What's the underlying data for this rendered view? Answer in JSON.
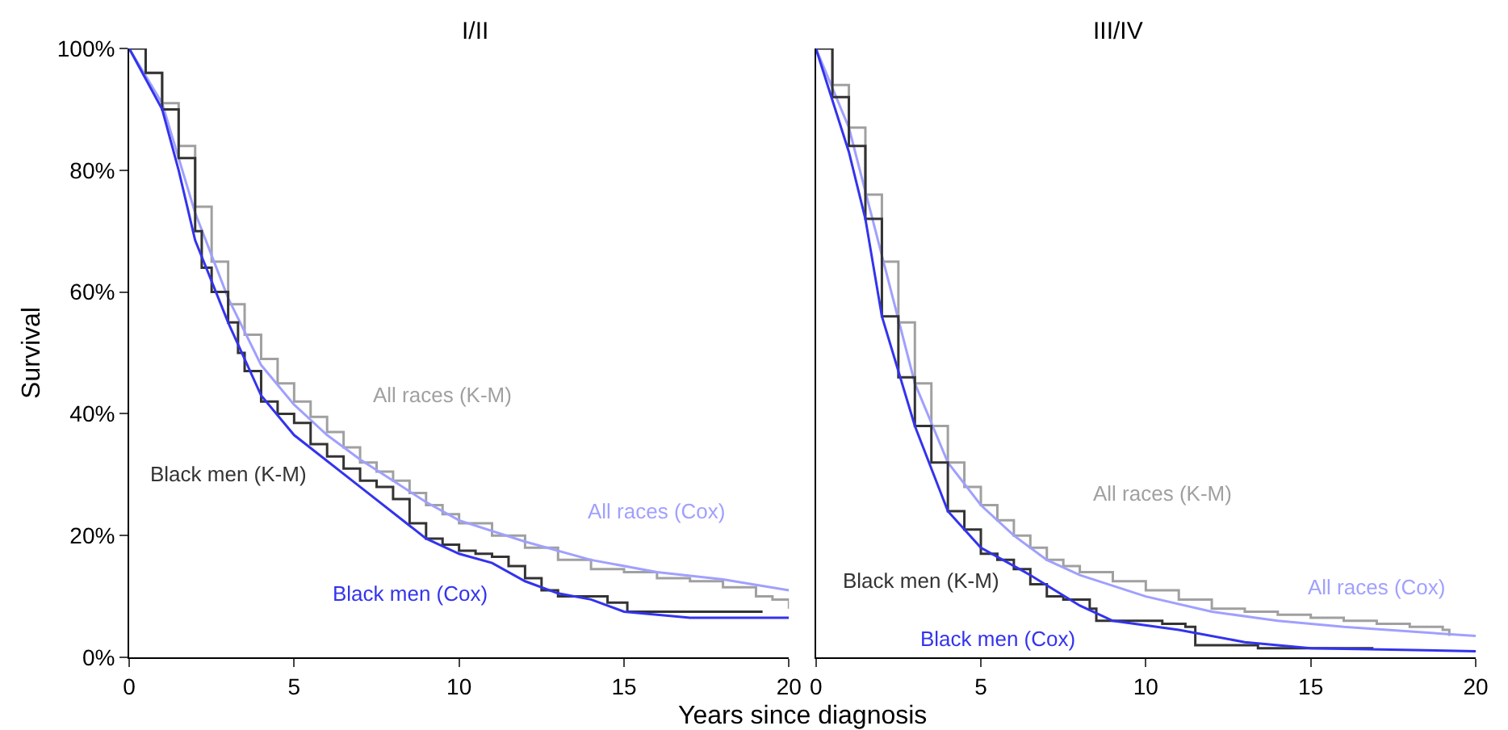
{
  "chart_data": [
    {
      "type": "line",
      "title": "I/II",
      "xlabel": "Years since diagnosis",
      "ylabel": "Survival",
      "xlim": [
        0,
        20
      ],
      "xticks": [
        0,
        5,
        10,
        15,
        20
      ],
      "ylim": [
        0,
        100
      ],
      "yticks": [
        {
          "value": 0,
          "label": "0%"
        },
        {
          "value": 20,
          "label": "20%"
        },
        {
          "value": 40,
          "label": "40%"
        },
        {
          "value": 60,
          "label": "60%"
        },
        {
          "value": 80,
          "label": "80%"
        },
        {
          "value": 100,
          "label": "100%"
        }
      ],
      "marker": "none",
      "series": [
        {
          "name": "All races (K-M)",
          "type": "step",
          "color": "#a0a0a0",
          "x": [
            0,
            0.5,
            1,
            1.5,
            2,
            2.5,
            3,
            3.5,
            4,
            4.5,
            5,
            5.5,
            6,
            6.5,
            7,
            7.5,
            8,
            8.5,
            9,
            9.5,
            10,
            11,
            12,
            13,
            14,
            15,
            16,
            17,
            18,
            19,
            19.5,
            20
          ],
          "values": [
            100,
            96,
            91,
            84,
            74,
            65,
            58,
            53,
            49,
            45,
            42,
            39.5,
            37,
            34.5,
            32,
            30.5,
            29,
            27,
            25,
            23.5,
            22,
            20,
            18,
            16,
            14.5,
            14,
            13,
            12.5,
            11.5,
            10,
            9.5,
            8
          ]
        },
        {
          "name": "All races (Cox)",
          "color": "#a0a0ff",
          "x": [
            0,
            1,
            2,
            3,
            4,
            5,
            6,
            7,
            8,
            9,
            10,
            12,
            14,
            16,
            18,
            20
          ],
          "values": [
            100,
            91,
            73,
            59,
            48,
            41.5,
            36.5,
            32.5,
            29,
            25.5,
            22.5,
            19,
            16,
            14,
            12.8,
            11
          ]
        },
        {
          "name": "Black men (K-M)",
          "type": "step",
          "color": "#333333",
          "x": [
            0,
            0.5,
            1,
            1.5,
            2,
            2.2,
            2.5,
            3,
            3.3,
            3.5,
            4,
            4.5,
            5,
            5.5,
            6,
            6.5,
            7,
            7.5,
            8,
            8.5,
            9,
            9.5,
            10,
            10.5,
            11,
            11.5,
            12,
            12.5,
            13,
            14.5,
            15.1,
            19.2
          ],
          "values": [
            100,
            96,
            90,
            82,
            70,
            64,
            60,
            55,
            50,
            47,
            42,
            40,
            38.5,
            35,
            33,
            31,
            29,
            28,
            26,
            22,
            19.5,
            18.5,
            17.5,
            17,
            16.5,
            15,
            13,
            11,
            10,
            9,
            7.5,
            7.5
          ]
        },
        {
          "name": "Black men (Cox)",
          "color": "#3333ee",
          "x": [
            0,
            1,
            1.5,
            2,
            3,
            4,
            5,
            7,
            9,
            10,
            11,
            12,
            13,
            14,
            15,
            17,
            20
          ],
          "values": [
            100,
            90,
            80,
            68.5,
            55,
            43,
            36.5,
            28,
            19.5,
            17,
            15.5,
            12.5,
            10.5,
            9.5,
            7.5,
            6.5,
            6.5
          ]
        }
      ]
    },
    {
      "type": "line",
      "title": "III/IV",
      "xlim": [
        0,
        20
      ],
      "xticks": [
        0,
        5,
        10,
        15,
        20
      ],
      "ylim": [
        0,
        100
      ],
      "tick_labels": "x",
      "marker": "none",
      "series": [
        {
          "name": "All races (K-M)",
          "type": "step",
          "color": "#a0a0a0",
          "x": [
            0,
            0.5,
            1,
            1.5,
            2,
            2.5,
            3,
            3.5,
            4,
            4.5,
            5,
            5.5,
            6,
            6.5,
            7,
            7.5,
            8,
            9,
            10,
            11,
            12,
            13,
            14,
            15,
            16,
            17,
            18,
            19,
            19.2
          ],
          "values": [
            100,
            94,
            87,
            76,
            65,
            55,
            45,
            38,
            32,
            28,
            25,
            22.5,
            20,
            18,
            16,
            15,
            14,
            12.5,
            11,
            9.5,
            8,
            7.5,
            7,
            6.5,
            6,
            5.5,
            5,
            4.5,
            3.5
          ]
        },
        {
          "name": "All races (Cox)",
          "color": "#a0a0ff",
          "x": [
            0,
            1,
            2,
            3,
            4,
            5,
            6,
            7,
            8,
            10,
            12,
            14,
            16,
            20
          ],
          "values": [
            100,
            87,
            66,
            45,
            32,
            25,
            20,
            16,
            13.5,
            10,
            7.5,
            6,
            5,
            3.5
          ]
        },
        {
          "name": "Black men (K-M)",
          "type": "step",
          "color": "#333333",
          "x": [
            0,
            0.5,
            1,
            1.5,
            2,
            2.5,
            3,
            3.5,
            4,
            4.5,
            5,
            5.5,
            6,
            6.5,
            7,
            7.5,
            8.3,
            8.5,
            9.5,
            10.5,
            11.2,
            11.5,
            13.4,
            16.9
          ],
          "values": [
            100,
            92,
            84,
            72,
            56,
            46,
            38,
            32,
            24,
            21,
            17,
            16,
            14.5,
            12,
            10,
            9.5,
            8,
            6,
            6,
            5.5,
            5,
            2,
            1.5,
            1.5
          ]
        },
        {
          "name": "Black men (Cox)",
          "color": "#3333ee",
          "x": [
            0,
            1,
            1.5,
            2,
            3,
            4,
            5,
            6.5,
            8,
            9,
            11,
            13,
            15,
            20
          ],
          "values": [
            100,
            83,
            72,
            56,
            38,
            24,
            18,
            13.5,
            8.5,
            6,
            4.5,
            2.5,
            1.5,
            1
          ]
        }
      ]
    }
  ]
}
